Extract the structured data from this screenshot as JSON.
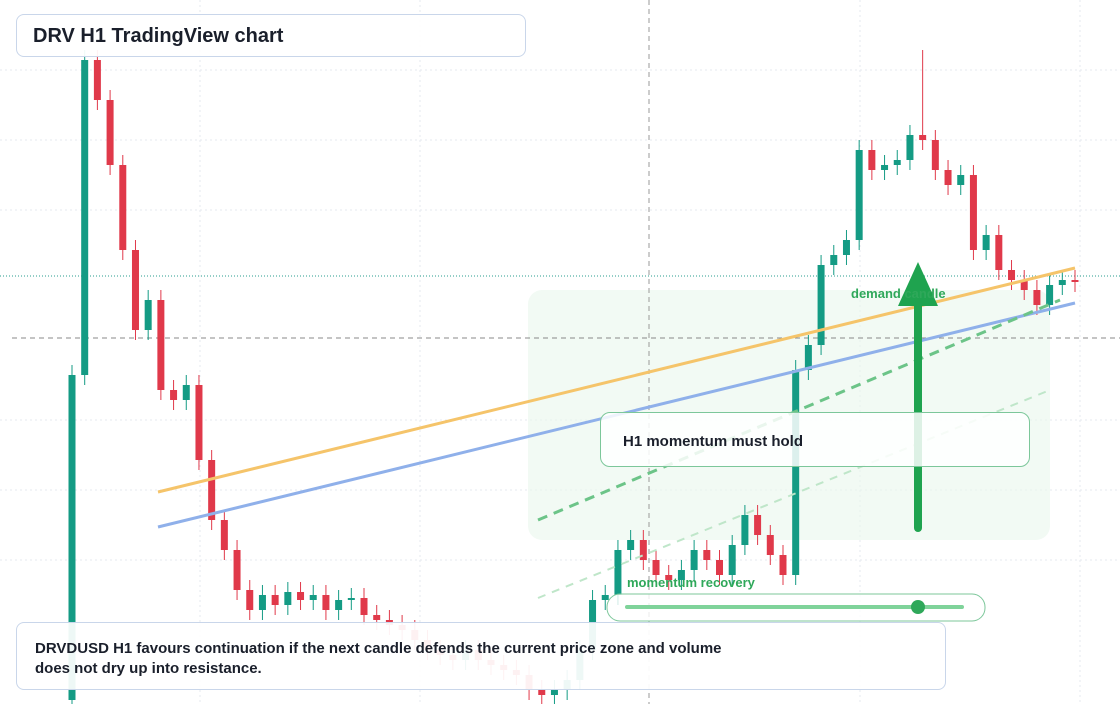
{
  "header": {
    "title": "DRV H1 TradingView chart"
  },
  "chart_data": {
    "type": "candlestick",
    "up_color": "#149b84",
    "down_color": "#e0394a",
    "ylim": [
      0,
      704
    ],
    "open": [
      4,
      329,
      644,
      604,
      539,
      454,
      374,
      404,
      314,
      304,
      319,
      244,
      184,
      154,
      114,
      94,
      109,
      99,
      112,
      104,
      109,
      94,
      104,
      106,
      89,
      84,
      79,
      74,
      64,
      54,
      49,
      44,
      54,
      44,
      39,
      34,
      29,
      14,
      9,
      14,
      24,
      54,
      104,
      109,
      154,
      164,
      144,
      129,
      124,
      134,
      154,
      144,
      129,
      159,
      189,
      169,
      149,
      129,
      334,
      359,
      439,
      449,
      464,
      554,
      534,
      539,
      544,
      569,
      564,
      534,
      519,
      529,
      454,
      469,
      434,
      424,
      414,
      399,
      419,
      424
    ],
    "high": [
      339,
      654,
      654,
      614,
      549,
      464,
      414,
      414,
      324,
      329,
      329,
      254,
      194,
      164,
      124,
      119,
      119,
      122,
      122,
      119,
      119,
      114,
      116,
      116,
      99,
      94,
      89,
      84,
      74,
      64,
      59,
      64,
      64,
      54,
      49,
      44,
      39,
      24,
      24,
      34,
      64,
      114,
      119,
      164,
      174,
      174,
      154,
      139,
      144,
      164,
      164,
      154,
      169,
      199,
      199,
      179,
      159,
      344,
      369,
      449,
      459,
      474,
      564,
      564,
      549,
      554,
      579,
      654,
      574,
      544,
      539,
      539,
      479,
      479,
      444,
      434,
      424,
      429,
      434,
      434
    ],
    "low": [
      0,
      319,
      594,
      529,
      444,
      364,
      364,
      304,
      294,
      294,
      234,
      174,
      144,
      104,
      84,
      84,
      89,
      89,
      94,
      94,
      84,
      84,
      94,
      79,
      74,
      69,
      64,
      54,
      44,
      39,
      34,
      34,
      34,
      29,
      24,
      19,
      4,
      0,
      0,
      4,
      14,
      44,
      94,
      99,
      144,
      134,
      119,
      114,
      114,
      124,
      134,
      119,
      119,
      149,
      159,
      139,
      119,
      119,
      324,
      349,
      429,
      439,
      454,
      524,
      524,
      529,
      534,
      554,
      524,
      509,
      509,
      444,
      444,
      424,
      414,
      404,
      389,
      389,
      409,
      412
    ],
    "close": [
      329,
      644,
      604,
      539,
      454,
      374,
      404,
      314,
      304,
      319,
      244,
      184,
      154,
      114,
      94,
      109,
      99,
      112,
      104,
      109,
      94,
      104,
      106,
      89,
      84,
      79,
      74,
      64,
      54,
      49,
      44,
      54,
      44,
      39,
      34,
      29,
      14,
      9,
      14,
      24,
      54,
      104,
      109,
      154,
      164,
      144,
      129,
      124,
      134,
      154,
      144,
      129,
      159,
      189,
      169,
      149,
      129,
      334,
      359,
      439,
      449,
      464,
      554,
      534,
      539,
      544,
      569,
      564,
      534,
      519,
      529,
      454,
      469,
      434,
      424,
      414,
      399,
      419,
      424,
      422
    ]
  },
  "annotations": {
    "zone_label": "demand candle",
    "callout": "H1 momentum must hold",
    "slider_label": "momentum recovery"
  },
  "note": {
    "text": "DRVDUSD H1 favours continuation if the next candle defends the current price zone and volume does not dry up into resistance."
  }
}
